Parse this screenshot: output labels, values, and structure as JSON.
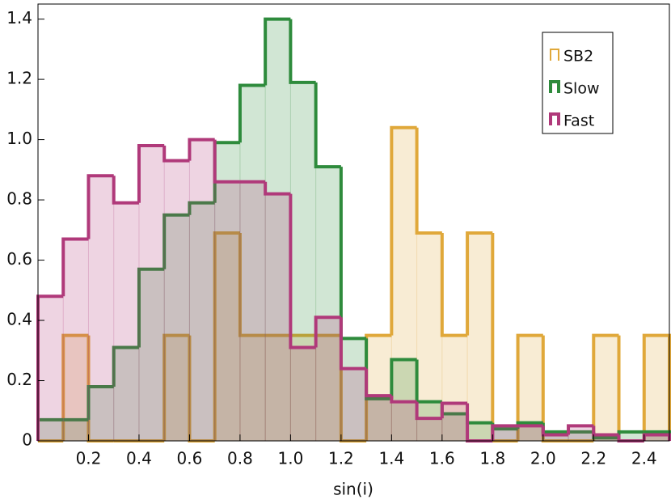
{
  "chart_data": {
    "type": "histogram",
    "x_label": "sin(i)",
    "bins": [
      0,
      0.1,
      0.2,
      0.3,
      0.4,
      0.5,
      0.6,
      0.7,
      0.8,
      0.9,
      1.0,
      1.1,
      1.2,
      1.3,
      1.4,
      1.5,
      1.6,
      1.7,
      1.8,
      1.9,
      2.0,
      2.1,
      2.2,
      2.3,
      2.4,
      2.5
    ],
    "series": [
      {
        "name": "SB2",
        "color": "#e0a83a",
        "values": [
          0,
          0.35,
          0,
          0,
          0,
          0.35,
          0,
          0.69,
          0.35,
          0.35,
          0.35,
          0.35,
          0,
          0.35,
          1.04,
          0.69,
          0.35,
          0.69,
          0,
          0.35,
          0,
          0,
          0.35,
          0,
          0.35
        ]
      },
      {
        "name": "Slow",
        "color": "#2e8b3c",
        "values": [
          0.07,
          0.07,
          0.18,
          0.31,
          0.57,
          0.75,
          0.79,
          0.99,
          1.18,
          1.4,
          1.19,
          0.91,
          0.34,
          0.14,
          0.27,
          0.13,
          0.09,
          0.06,
          0.04,
          0.06,
          0.03,
          0.03,
          0.01,
          0.03,
          0.03
        ]
      },
      {
        "name": "Fast",
        "color": "#b0397a",
        "values": [
          0.48,
          0.67,
          0.88,
          0.79,
          0.98,
          0.93,
          1.0,
          0.86,
          0.86,
          0.82,
          0.31,
          0.41,
          0.24,
          0.15,
          0.13,
          0.075,
          0.125,
          0,
          0.05,
          0.05,
          0.02,
          0.05,
          0.02,
          0,
          0.02
        ]
      }
    ],
    "xlim": [
      0,
      2.5
    ],
    "ylim": [
      0,
      1.45
    ],
    "xticks": [
      0.2,
      0.4,
      0.6,
      0.8,
      {
        "value": 1.0,
        "label": "1.0"
      },
      1.2,
      1.4,
      1.6,
      1.8,
      {
        "value": 2.0,
        "label": "2.0"
      },
      2.2,
      2.4
    ],
    "yticks": [
      0,
      0.2,
      0.4,
      0.6,
      0.8,
      {
        "value": 1.0,
        "label": "1.0"
      },
      1.2,
      1.4
    ],
    "legend": "upper right"
  }
}
